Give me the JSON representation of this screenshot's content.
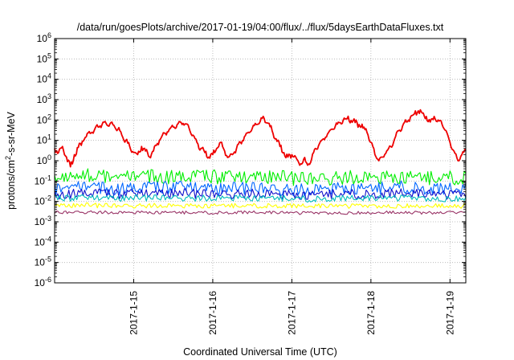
{
  "chart_data": {
    "type": "line",
    "title": "/data/run/goesPlots/archive/2017-01-19/04:00/flux/../flux/5daysEarthDataFluxes.txt",
    "xlabel": "Coordinated Universal Time (UTC)",
    "ylabel_parts": {
      "base": "protons/cm",
      "sup": "2",
      "rest": "-s-sr-MeV"
    },
    "y_scale": "log",
    "ylim": [
      1e-06,
      1000000.0
    ],
    "xlim": [
      14.0,
      19.2
    ],
    "grid": true,
    "y_ticks": [
      {
        "value": 1e-06,
        "base": "10",
        "exp": "-6"
      },
      {
        "value": 1e-05,
        "base": "10",
        "exp": "-5"
      },
      {
        "value": 0.0001,
        "base": "10",
        "exp": "-4"
      },
      {
        "value": 0.001,
        "base": "10",
        "exp": "-3"
      },
      {
        "value": 0.01,
        "base": "10",
        "exp": "-2"
      },
      {
        "value": 0.1,
        "base": "10",
        "exp": "-1"
      },
      {
        "value": 1,
        "base": "10",
        "exp": "0"
      },
      {
        "value": 10,
        "base": "10",
        "exp": "1"
      },
      {
        "value": 100,
        "base": "10",
        "exp": "2"
      },
      {
        "value": 1000,
        "base": "10",
        "exp": "3"
      },
      {
        "value": 10000,
        "base": "10",
        "exp": "4"
      },
      {
        "value": 100000,
        "base": "10",
        "exp": "5"
      },
      {
        "value": 1000000,
        "base": "10",
        "exp": "6"
      }
    ],
    "x_ticks": [
      {
        "value": 15,
        "label": "2017-1-15"
      },
      {
        "value": 16,
        "label": "2017-1-16"
      },
      {
        "value": 17,
        "label": "2017-1-17"
      },
      {
        "value": 18,
        "label": "2017-1-18"
      },
      {
        "value": 19,
        "label": "2017-1-19"
      }
    ],
    "series": [
      {
        "color": "#ee0000",
        "x": [
          14.0,
          14.05,
          14.1,
          14.15,
          14.2,
          14.25,
          14.3,
          14.35,
          14.4,
          14.45,
          14.5,
          14.55,
          14.6,
          14.65,
          14.7,
          14.75,
          14.8,
          14.85,
          14.9,
          14.95,
          15.0,
          15.05,
          15.1,
          15.15,
          15.2,
          15.25,
          15.3,
          15.35,
          15.4,
          15.45,
          15.5,
          15.55,
          15.6,
          15.65,
          15.7,
          15.75,
          15.8,
          15.85,
          15.9,
          15.95,
          16.0,
          16.05,
          16.1,
          16.15,
          16.2,
          16.25,
          16.3,
          16.35,
          16.4,
          16.45,
          16.5,
          16.55,
          16.6,
          16.65,
          16.7,
          16.75,
          16.8,
          16.85,
          16.9,
          16.95,
          17.0,
          17.05,
          17.1,
          17.15,
          17.2,
          17.25,
          17.3,
          17.35,
          17.4,
          17.45,
          17.5,
          17.55,
          17.6,
          17.65,
          17.7,
          17.75,
          17.8,
          17.85,
          17.9,
          17.95,
          18.0,
          18.05,
          18.1,
          18.15,
          18.2,
          18.25,
          18.3,
          18.35,
          18.4,
          18.45,
          18.5,
          18.55,
          18.6,
          18.65,
          18.7,
          18.75,
          18.8,
          18.85,
          18.9,
          18.95,
          19.0,
          19.05,
          19.1,
          19.15,
          19.2
        ],
        "values": [
          4,
          2.5,
          5,
          1.5,
          0.5,
          2,
          4.5,
          9,
          15,
          22,
          30,
          45,
          60,
          70,
          65,
          55,
          35,
          18,
          10,
          5,
          2.5,
          2,
          5,
          3,
          1.5,
          3,
          7,
          14,
          22,
          35,
          45,
          60,
          75,
          65,
          40,
          18,
          8,
          4,
          2.5,
          1.5,
          2,
          4,
          8,
          3,
          1.5,
          2,
          4,
          8,
          15,
          25,
          40,
          60,
          85,
          120,
          70,
          30,
          12,
          5,
          2.5,
          1.5,
          2,
          1.5,
          0.6,
          1.2,
          0.6,
          1.2,
          4,
          7,
          12,
          20,
          35,
          50,
          75,
          100,
          115,
          95,
          75,
          60,
          40,
          25,
          8,
          2,
          1,
          1.5,
          3,
          5,
          12,
          30,
          50,
          80,
          140,
          200,
          280,
          220,
          150,
          80,
          150,
          100,
          60,
          30,
          8,
          3,
          1,
          2,
          3
        ]
      },
      {
        "color": "#00ee00",
        "x": [
          14.0,
          14.4,
          14.8,
          15.2,
          15.6,
          16.0,
          16.4,
          16.8,
          17.2,
          17.6,
          18.0,
          18.4,
          18.8,
          19.2
        ],
        "values": [
          0.15,
          0.18,
          0.14,
          0.17,
          0.15,
          0.16,
          0.14,
          0.16,
          0.12,
          0.15,
          0.14,
          0.16,
          0.13,
          0.15
        ]
      },
      {
        "color": "#0066ff",
        "x": [
          14.0,
          14.4,
          14.8,
          15.2,
          15.6,
          16.0,
          16.4,
          16.8,
          17.2,
          17.6,
          18.0,
          18.4,
          18.8,
          19.2
        ],
        "values": [
          0.04,
          0.05,
          0.04,
          0.045,
          0.05,
          0.04,
          0.045,
          0.04,
          0.035,
          0.045,
          0.04,
          0.05,
          0.04,
          0.04
        ]
      },
      {
        "color": "#1111cc",
        "x": [
          14.0,
          14.4,
          14.8,
          15.2,
          15.6,
          16.0,
          16.4,
          16.8,
          17.2,
          17.6,
          18.0,
          18.4,
          18.8,
          19.2
        ],
        "values": [
          0.022,
          0.025,
          0.022,
          0.024,
          0.025,
          0.022,
          0.024,
          0.022,
          0.02,
          0.023,
          0.022,
          0.025,
          0.022,
          0.022
        ]
      },
      {
        "color": "#00bbbb",
        "x": [
          14.0,
          14.4,
          14.8,
          15.2,
          15.6,
          16.0,
          16.4,
          16.8,
          17.2,
          17.6,
          18.0,
          18.4,
          18.8,
          19.2
        ],
        "values": [
          0.014,
          0.015,
          0.014,
          0.015,
          0.015,
          0.014,
          0.015,
          0.014,
          0.013,
          0.014,
          0.014,
          0.015,
          0.014,
          0.014
        ]
      },
      {
        "color": "#ffff00",
        "x": [
          14.0,
          14.4,
          14.8,
          15.2,
          15.6,
          16.0,
          16.4,
          16.8,
          17.2,
          17.6,
          18.0,
          18.4,
          18.8,
          19.2
        ],
        "values": [
          0.006,
          0.0065,
          0.006,
          0.0062,
          0.006,
          0.0061,
          0.006,
          0.0062,
          0.0058,
          0.006,
          0.006,
          0.0062,
          0.006,
          0.006
        ]
      },
      {
        "color": "#993366",
        "x": [
          14.0,
          14.4,
          14.8,
          15.2,
          15.6,
          16.0,
          16.4,
          16.8,
          17.2,
          17.6,
          18.0,
          18.4,
          18.8,
          19.2
        ],
        "values": [
          0.0028,
          0.003,
          0.0028,
          0.0029,
          0.0028,
          0.0028,
          0.0029,
          0.0028,
          0.0027,
          0.0028,
          0.0028,
          0.0029,
          0.0028,
          0.0028
        ]
      }
    ]
  }
}
